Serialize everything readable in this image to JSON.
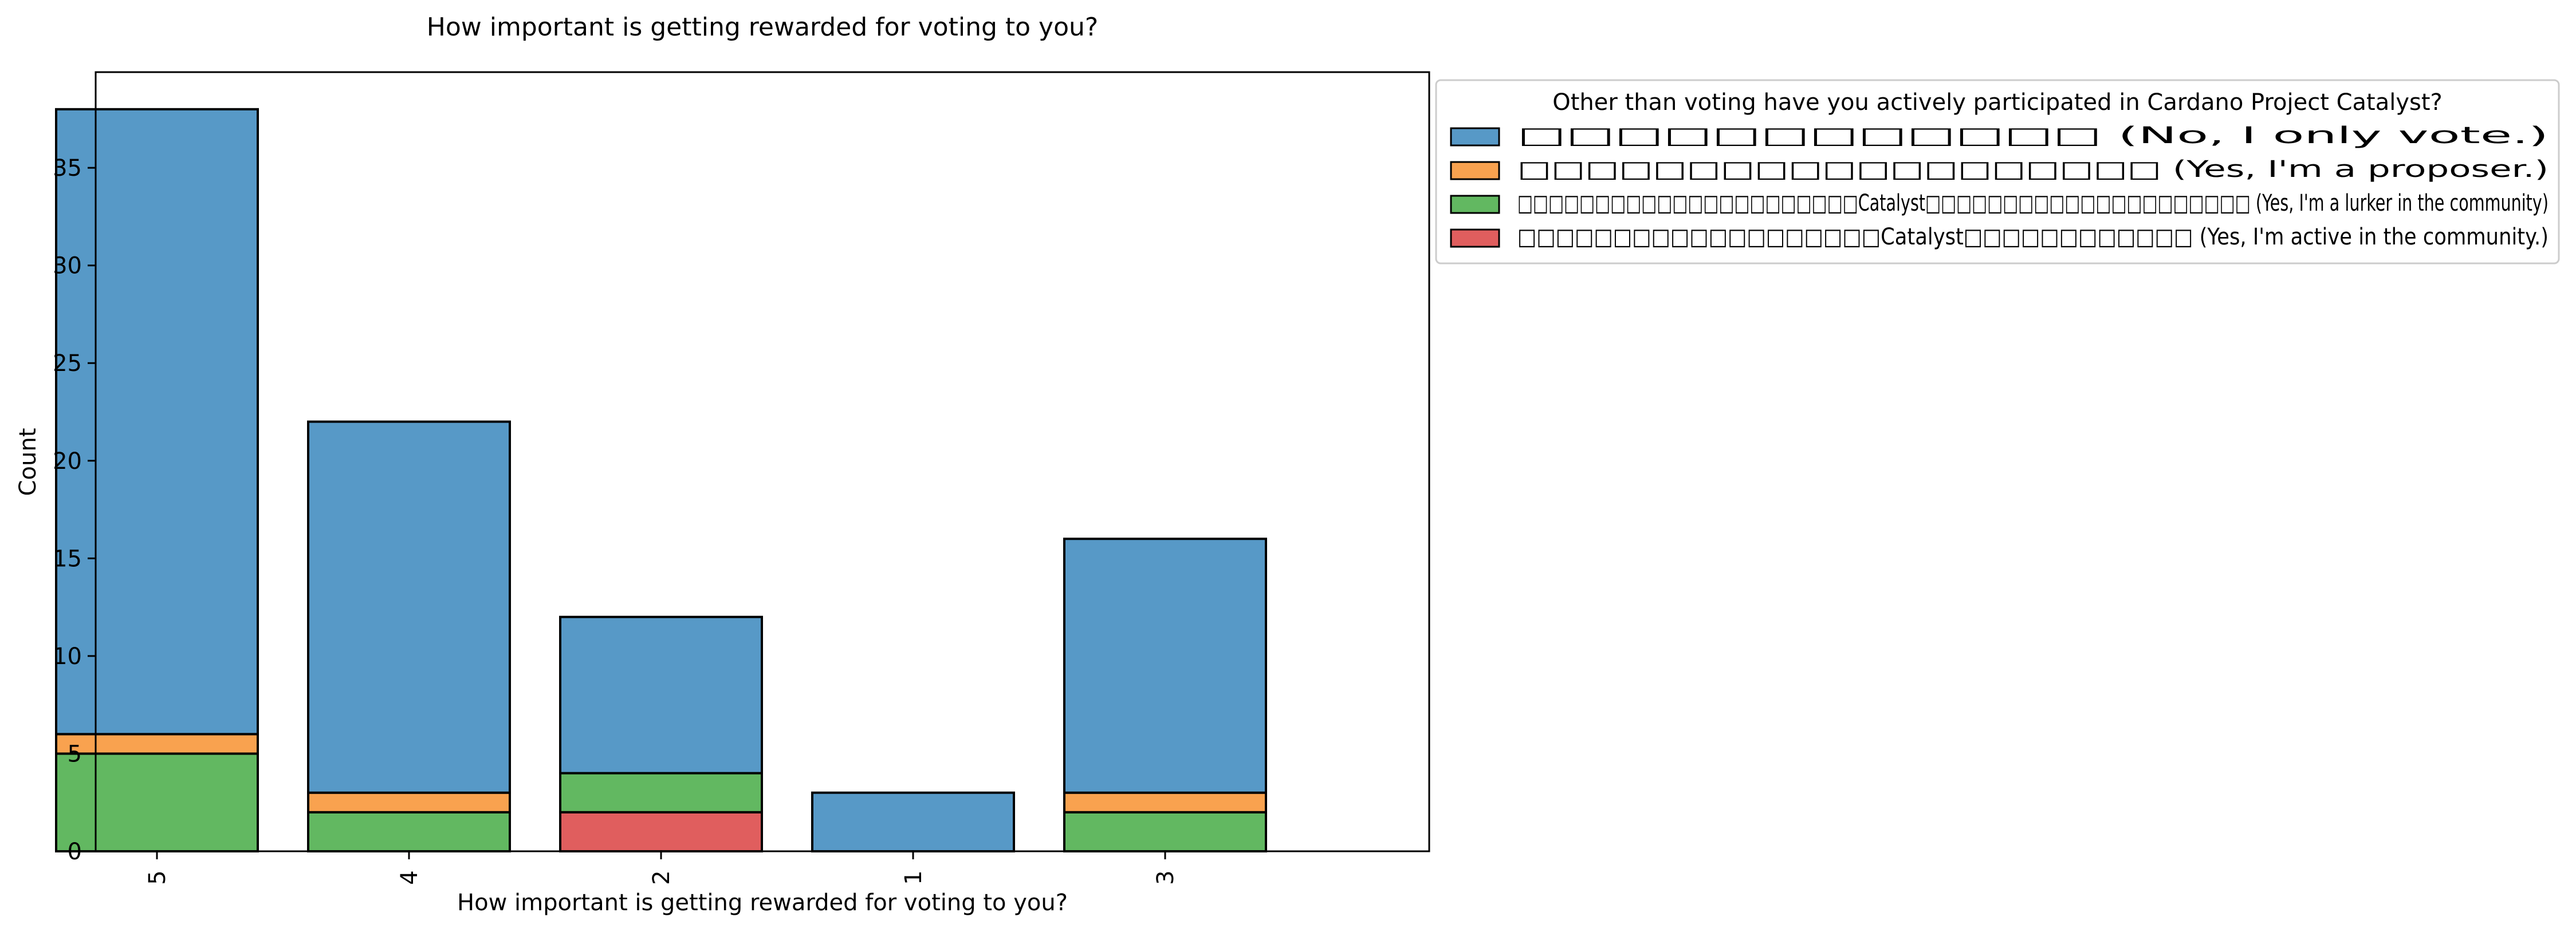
{
  "chart_data": {
    "type": "bar",
    "stacked": true,
    "title": "How important is getting rewarded for voting to you?",
    "xlabel": "How important is getting rewarded for voting to you?",
    "ylabel": "Count",
    "categories": [
      "5",
      "4",
      "2",
      "1",
      "3"
    ],
    "ylim": [
      0,
      39.9
    ],
    "yticks": [
      0,
      5,
      10,
      15,
      20,
      25,
      30,
      35
    ],
    "grid": false,
    "legend_position": "outside-right",
    "legend_title": "Other than voting have you actively participated in Cardano Project Catalyst?",
    "series": [
      {
        "name": "□□□□□□□□□□□□ (No, I only vote.)",
        "color": "#5799c7",
        "values": [
          32,
          19,
          8,
          3,
          13
        ]
      },
      {
        "name": "□□□□□□□□□□□□□□□□□□□ (Yes, I'm a proposer.)",
        "color": "#f9a24f",
        "values": [
          1,
          1,
          0,
          0,
          1
        ]
      },
      {
        "name": "□□□□□□□□□□□□□□□□□□□□□□Catalyst□□□□□□□□□□□□□□□□□□□□□ (Yes, I'm a lurker in the community)",
        "color": "#62b861",
        "values": [
          5,
          2,
          2,
          0,
          2
        ]
      },
      {
        "name": "□□□□□□□□□□□□□□□□□□□Catalyst□□□□□□□□□□□□ (Yes, I'm active in the community.)",
        "color": "#e05e5e",
        "values": [
          0,
          0,
          2,
          0,
          0
        ]
      }
    ],
    "stack_order": [
      3,
      2,
      1,
      0
    ]
  }
}
